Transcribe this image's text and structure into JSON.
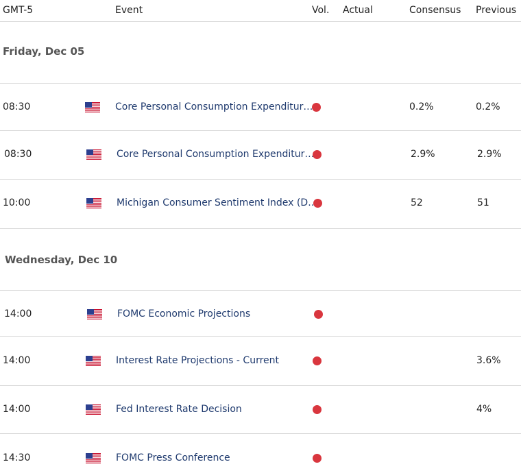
{
  "header": {
    "timezone": "GMT-5",
    "event": "Event",
    "volatility": "Vol.",
    "actual": "Actual",
    "consensus": "Consensus",
    "previous": "Previous"
  },
  "days": [
    {
      "date": "Friday, Dec 05",
      "events": [
        {
          "time": "08:30",
          "country": "us-flag-icon",
          "name": "Core Personal Consumption Expenditur…",
          "volatility": "high",
          "actual": "",
          "consensus": "0.2%",
          "previous": "0.2%"
        },
        {
          "time": "08:30",
          "country": "us-flag-icon",
          "name": "Core Personal Consumption Expenditur…",
          "volatility": "high",
          "actual": "",
          "consensus": "2.9%",
          "previous": "2.9%"
        },
        {
          "time": "10:00",
          "country": "us-flag-icon",
          "name": "Michigan Consumer Sentiment Index (D…",
          "volatility": "high",
          "actual": "",
          "consensus": "52",
          "previous": "51"
        }
      ]
    },
    {
      "date": "Wednesday, Dec 10",
      "events": [
        {
          "time": "14:00",
          "country": "us-flag-icon",
          "name": "FOMC Economic Projections",
          "volatility": "high",
          "actual": "",
          "consensus": "",
          "previous": ""
        },
        {
          "time": "14:00",
          "country": "us-flag-icon",
          "name": "Interest Rate Projections - Current",
          "volatility": "high",
          "actual": "",
          "consensus": "",
          "previous": "3.6%"
        },
        {
          "time": "14:00",
          "country": "us-flag-icon",
          "name": "Fed Interest Rate Decision",
          "volatility": "high",
          "actual": "",
          "consensus": "",
          "previous": "4%"
        },
        {
          "time": "14:30",
          "country": "us-flag-icon",
          "name": "FOMC Press Conference",
          "volatility": "high",
          "actual": "",
          "consensus": "",
          "previous": ""
        }
      ]
    }
  ],
  "colors": {
    "high_volatility": "#d9363e",
    "event_text": "#1f3a6e",
    "divider": "#d9d9d9"
  }
}
